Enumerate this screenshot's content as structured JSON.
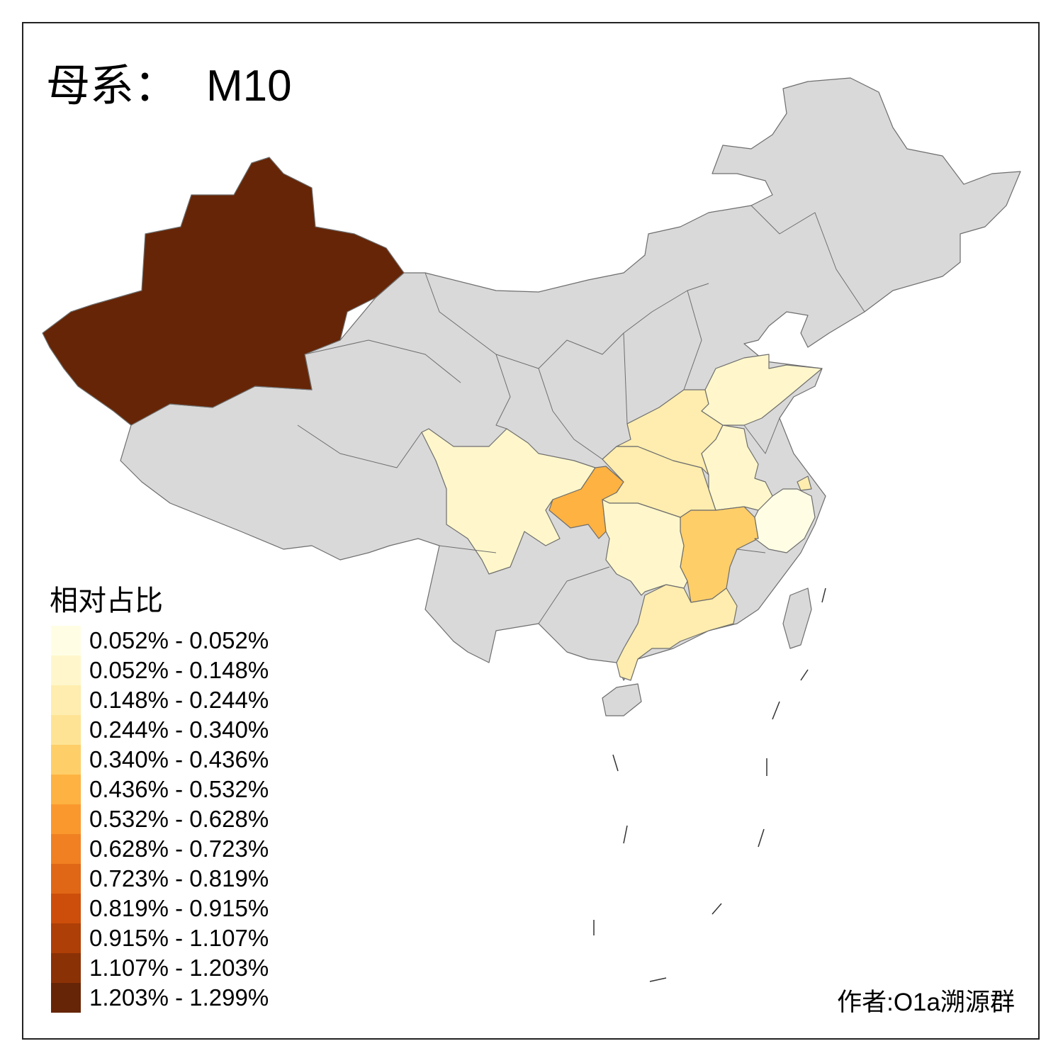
{
  "title": {
    "prefix": "母系：",
    "haplogroup": "M10"
  },
  "legend": {
    "title": "相对占比",
    "bins": [
      {
        "label": "0.052% - 0.052%",
        "color": "#FFFEE5"
      },
      {
        "label": "0.052% - 0.148%",
        "color": "#FFF7CB"
      },
      {
        "label": "0.148% - 0.244%",
        "color": "#FEEDAE"
      },
      {
        "label": "0.244% - 0.340%",
        "color": "#FEE394"
      },
      {
        "label": "0.340% - 0.436%",
        "color": "#FECE68"
      },
      {
        "label": "0.436% - 0.532%",
        "color": "#FDB241"
      },
      {
        "label": "0.532% - 0.628%",
        "color": "#FB982D"
      },
      {
        "label": "0.628% - 0.723%",
        "color": "#F08022"
      },
      {
        "label": "0.723% - 0.819%",
        "color": "#E06716"
      },
      {
        "label": "0.819% - 0.915%",
        "color": "#CC4E0A"
      },
      {
        "label": "0.915% - 1.107%",
        "color": "#AE3F06"
      },
      {
        "label": "1.107% - 1.203%",
        "color": "#8B3106"
      },
      {
        "label": "1.203% - 1.299%",
        "color": "#662506"
      }
    ]
  },
  "map": {
    "no_data_color": "#D9D9D9",
    "border_color": "#6E6E6E",
    "region_bins": {
      "xinjiang": 12,
      "sichuan": 1,
      "chongqing": 5,
      "hubei": 2,
      "henan": 2,
      "shandong": 1,
      "anhui": 1,
      "jiangxi": 4,
      "hunan": 1,
      "zhejiang": 0,
      "shanghai": 2,
      "guangdong": 2
    }
  },
  "author": "作者:O1a溯源群"
}
